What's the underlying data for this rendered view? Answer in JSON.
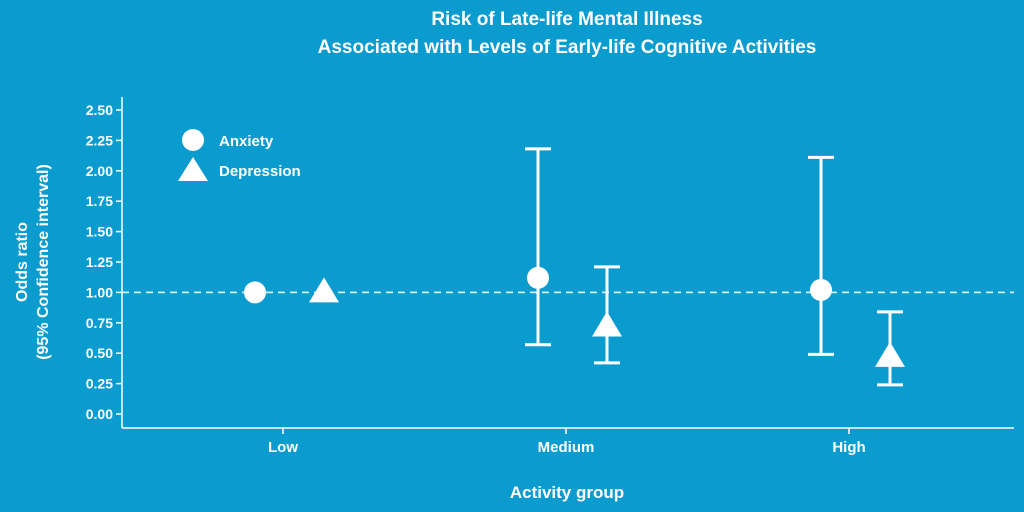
{
  "chart_data": {
    "type": "scatter",
    "title_line1": "Risk of Late-life Mental Illness",
    "title_line2": "Associated with Levels of Early-life Cognitive Activities",
    "xlabel": "Activity group",
    "ylabel_line1": "Odds ratio",
    "ylabel_line2": "(95% Confidence interval)",
    "categories": [
      "Low",
      "Medium",
      "High"
    ],
    "ylim": [
      0,
      2.6
    ],
    "yticks": [
      "0.00",
      "0.25",
      "0.50",
      "0.75",
      "1.00",
      "1.25",
      "1.50",
      "1.75",
      "2.00",
      "2.25",
      "2.50"
    ],
    "reference_line": 1.0,
    "grid": false,
    "legend_position": "top-left",
    "series": [
      {
        "name": "Anxiety",
        "marker": "circle",
        "values": [
          1.0,
          1.12,
          1.02
        ],
        "ci_low": [
          null,
          0.57,
          0.49
        ],
        "ci_high": [
          null,
          2.18,
          2.11
        ]
      },
      {
        "name": "Depression",
        "marker": "triangle",
        "values": [
          1.0,
          0.72,
          0.47
        ],
        "ci_low": [
          null,
          0.42,
          0.24
        ],
        "ci_high": [
          null,
          1.21,
          0.84
        ]
      }
    ]
  },
  "colors": {
    "background": "#0a9bcf",
    "foreground": "#ffffff",
    "reference_line": "#d6eef7"
  }
}
